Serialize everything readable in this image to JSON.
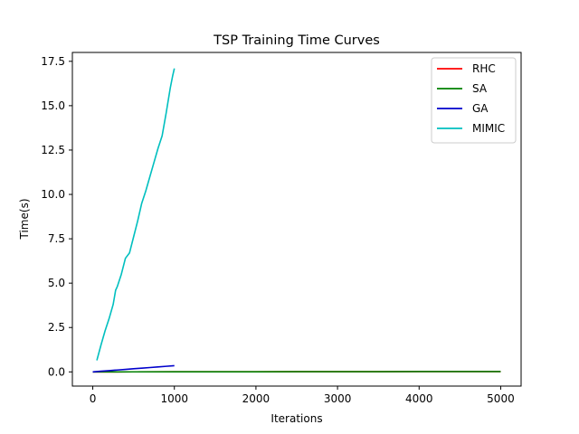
{
  "chart_data": {
    "type": "line",
    "title": "TSP Training Time Curves",
    "xlabel": "Iterations",
    "ylabel": "Time(s)",
    "xlim": [
      -250,
      5250
    ],
    "ylim": [
      -0.8,
      18.0
    ],
    "xticks": [
      0,
      1000,
      2000,
      3000,
      4000,
      5000
    ],
    "xtick_labels": [
      "0",
      "1000",
      "2000",
      "3000",
      "4000",
      "5000"
    ],
    "yticks": [
      0.0,
      2.5,
      5.0,
      7.5,
      10.0,
      12.5,
      15.0,
      17.5
    ],
    "ytick_labels": [
      "0.0",
      "2.5",
      "5.0",
      "7.5",
      "10.0",
      "12.5",
      "15.0",
      "17.5"
    ],
    "grid": false,
    "legend_position": "top-right",
    "series": [
      {
        "name": "RHC",
        "color": "#ff0000",
        "x": [
          0,
          500,
          1000,
          1500,
          2000,
          2500,
          3000,
          3500,
          4000,
          4500,
          5000
        ],
        "y": [
          0.0,
          0.002,
          0.004,
          0.006,
          0.008,
          0.01,
          0.012,
          0.014,
          0.016,
          0.018,
          0.02
        ]
      },
      {
        "name": "SA",
        "color": "#008000",
        "x": [
          0,
          500,
          1000,
          1500,
          2000,
          2500,
          3000,
          3500,
          4000,
          4500,
          5000
        ],
        "y": [
          0.0,
          0.002,
          0.004,
          0.006,
          0.008,
          0.01,
          0.012,
          0.014,
          0.016,
          0.018,
          0.02
        ]
      },
      {
        "name": "GA",
        "color": "#0000cc",
        "x": [
          0,
          100,
          200,
          300,
          400,
          500,
          600,
          700,
          800,
          900,
          1000
        ],
        "y": [
          0.0,
          0.035,
          0.07,
          0.105,
          0.14,
          0.175,
          0.21,
          0.245,
          0.28,
          0.315,
          0.35
        ]
      },
      {
        "name": "MIMIC",
        "color": "#00bfbf",
        "x": [
          50,
          100,
          150,
          200,
          250,
          280,
          300,
          350,
          400,
          450,
          500,
          550,
          600,
          650,
          700,
          750,
          800,
          850,
          900,
          950,
          980,
          1000
        ],
        "y": [
          0.65,
          1.5,
          2.3,
          3.0,
          3.8,
          4.6,
          4.8,
          5.5,
          6.4,
          6.7,
          7.6,
          8.5,
          9.5,
          10.2,
          11.0,
          11.8,
          12.6,
          13.3,
          14.6,
          16.0,
          16.7,
          17.1
        ]
      }
    ]
  }
}
